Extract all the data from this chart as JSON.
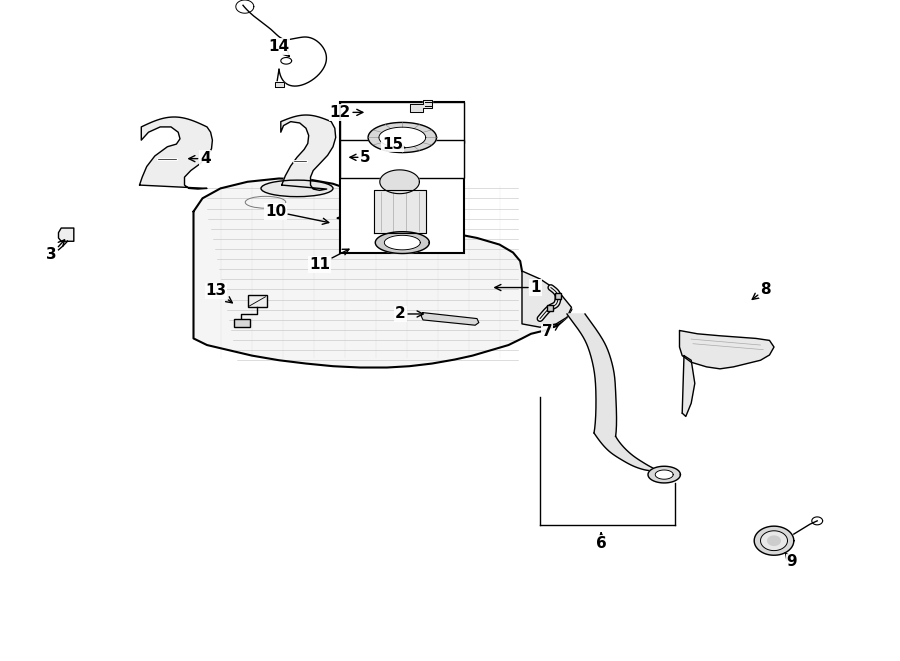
{
  "bg": "#ffffff",
  "lc": "#000000",
  "fig_w": 9.0,
  "fig_h": 6.61,
  "dpi": 100,
  "label_fs": 11,
  "labels": {
    "1": [
      0.595,
      0.565,
      0.545,
      0.565
    ],
    "2": [
      0.445,
      0.525,
      0.475,
      0.525
    ],
    "3": [
      0.057,
      0.615,
      0.075,
      0.642
    ],
    "4": [
      0.228,
      0.76,
      0.205,
      0.76
    ],
    "5": [
      0.406,
      0.762,
      0.384,
      0.762
    ],
    "6": [
      0.668,
      0.178,
      0.668,
      0.2
    ],
    "7": [
      0.608,
      0.498,
      0.625,
      0.513
    ],
    "8": [
      0.85,
      0.562,
      0.832,
      0.543
    ],
    "9": [
      0.88,
      0.15,
      0.87,
      0.168
    ],
    "10": [
      0.306,
      0.68,
      0.37,
      0.662
    ],
    "11": [
      0.355,
      0.6,
      0.392,
      0.626
    ],
    "12": [
      0.378,
      0.83,
      0.408,
      0.83
    ],
    "13": [
      0.24,
      0.56,
      0.262,
      0.538
    ],
    "14": [
      0.31,
      0.93,
      0.325,
      0.91
    ],
    "15": [
      0.436,
      0.782,
      0.454,
      0.775
    ]
  }
}
